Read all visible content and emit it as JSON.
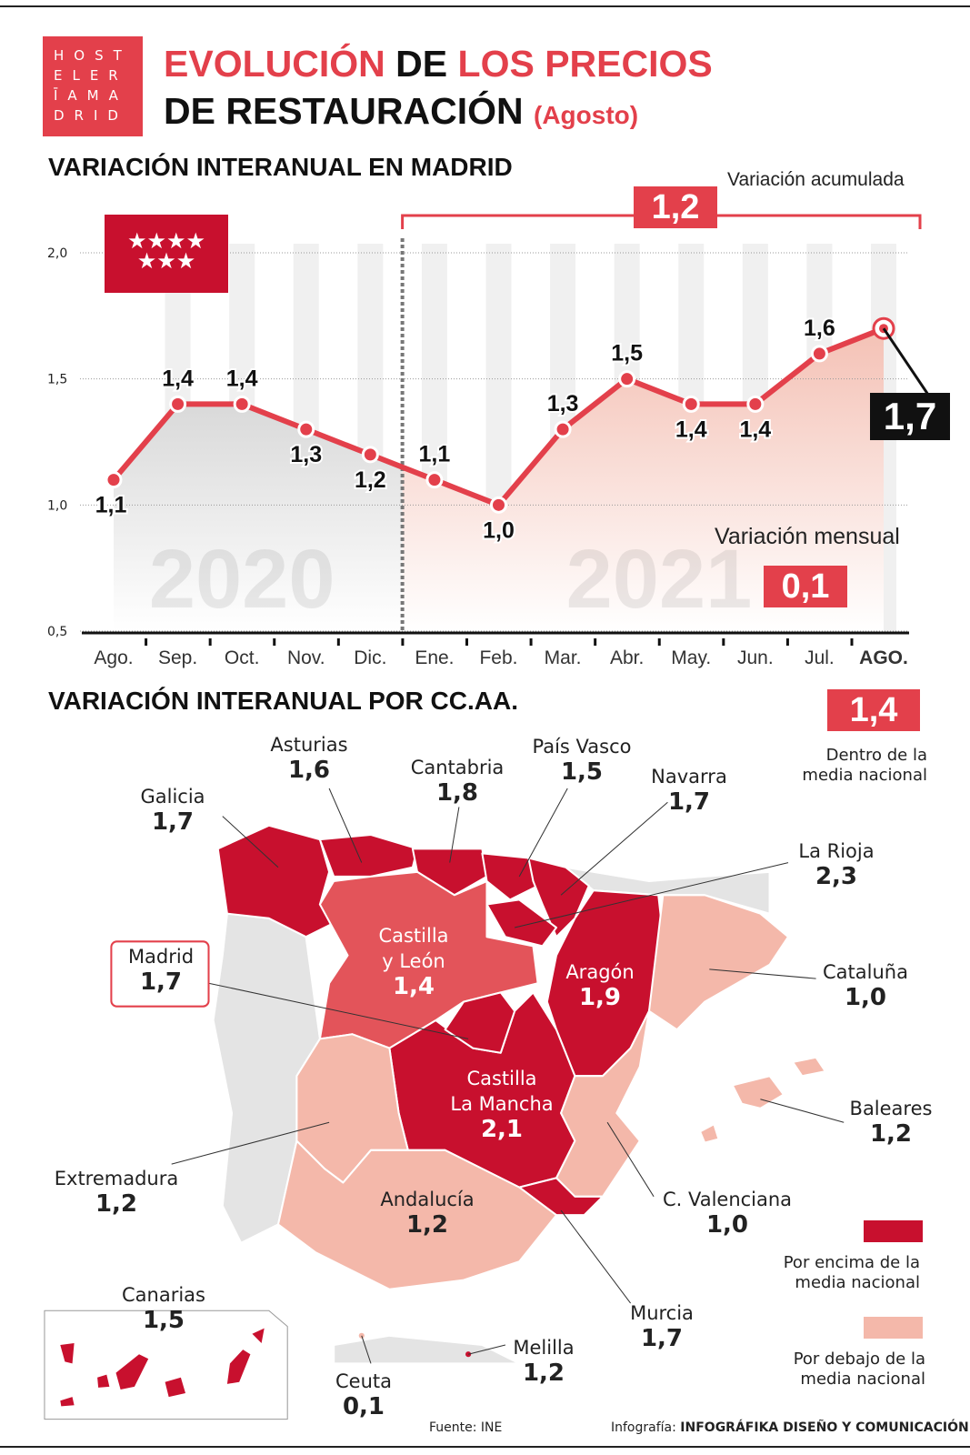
{
  "logo": {
    "lines": [
      "HOST",
      "ELER",
      "ĪAMA",
      "DRID"
    ]
  },
  "title": {
    "part1": "EVOLUCIÓN",
    "part2": "DE",
    "part3": "LOS PRECIOS",
    "part4": "DE RESTAURACIÓN",
    "part5": "(Agosto)"
  },
  "chart_section": {
    "title": "VARIACIÓN INTERANUAL EN MADRID",
    "acumulada_label": "Variación acumulada",
    "acumulada_value": "1,2",
    "mensual_label": "Variación mensual",
    "mensual_value": "0,1",
    "current_value": "1,7",
    "years": [
      "2020",
      "2021"
    ]
  },
  "chart_data": {
    "type": "line",
    "categories": [
      "Ago.",
      "Sep.",
      "Oct.",
      "Nov.",
      "Dic.",
      "Ene.",
      "Feb.",
      "Mar.",
      "Abr.",
      "May.",
      "Jun.",
      "Jul.",
      "AGO."
    ],
    "values": [
      1.1,
      1.4,
      1.4,
      1.3,
      1.2,
      1.1,
      1.0,
      1.3,
      1.5,
      1.4,
      1.4,
      1.6,
      1.7
    ],
    "data_labels": [
      "1,1",
      "1,4",
      "1,4",
      "1,3",
      "1,2",
      "1,1",
      "1,0",
      "1,3",
      "1,5",
      "1,4",
      "1,4",
      "1,6",
      "1,7"
    ],
    "yticks": [
      "0,5",
      "1,0",
      "1,5",
      "2,0"
    ],
    "ytick_values": [
      0.5,
      1.0,
      1.5,
      2.0
    ],
    "ylim": [
      0.5,
      2.0
    ],
    "grid": true,
    "colors": {
      "line": "#e3404b",
      "area_2020": "#d9d9d9",
      "area_2021": "#f4c1b5"
    }
  },
  "map_section": {
    "title": "VARIACIÓN INTERANUAL POR CC.AA.",
    "national_value": "1,4",
    "national_label": "Dentro de la media nacional",
    "legend": [
      {
        "label": "Por encima de la media nacional",
        "color": "#c8102e"
      },
      {
        "label": "Por debajo de la media nacional",
        "color": "#f4b8aa"
      }
    ],
    "regions": [
      {
        "name": "Galicia",
        "value": "1,7"
      },
      {
        "name": "Asturias",
        "value": "1,6"
      },
      {
        "name": "Cantabria",
        "value": "1,8"
      },
      {
        "name": "País Vasco",
        "value": "1,5"
      },
      {
        "name": "Navarra",
        "value": "1,7"
      },
      {
        "name": "La Rioja",
        "value": "2,3"
      },
      {
        "name": "Castilla y León",
        "value": "1,4"
      },
      {
        "name": "Madrid",
        "value": "1,7"
      },
      {
        "name": "Aragón",
        "value": "1,9"
      },
      {
        "name": "Cataluña",
        "value": "1,0"
      },
      {
        "name": "Castilla La Mancha",
        "value": "2,1"
      },
      {
        "name": "Baleares",
        "value": "1,2"
      },
      {
        "name": "Extremadura",
        "value": "1,2"
      },
      {
        "name": "Andalucía",
        "value": "1,2"
      },
      {
        "name": "C. Valenciana",
        "value": "1,0"
      },
      {
        "name": "Murcia",
        "value": "1,7"
      },
      {
        "name": "Canarias",
        "value": "1,5"
      },
      {
        "name": "Ceuta",
        "value": "0,1"
      },
      {
        "name": "Melilla",
        "value": "1,2"
      }
    ]
  },
  "footer": {
    "source": "Fuente: INE",
    "credit_prefix": "Infografía:",
    "credit": "INFOGRÁFIKA DISEÑO Y COMUNICACIÓN"
  }
}
